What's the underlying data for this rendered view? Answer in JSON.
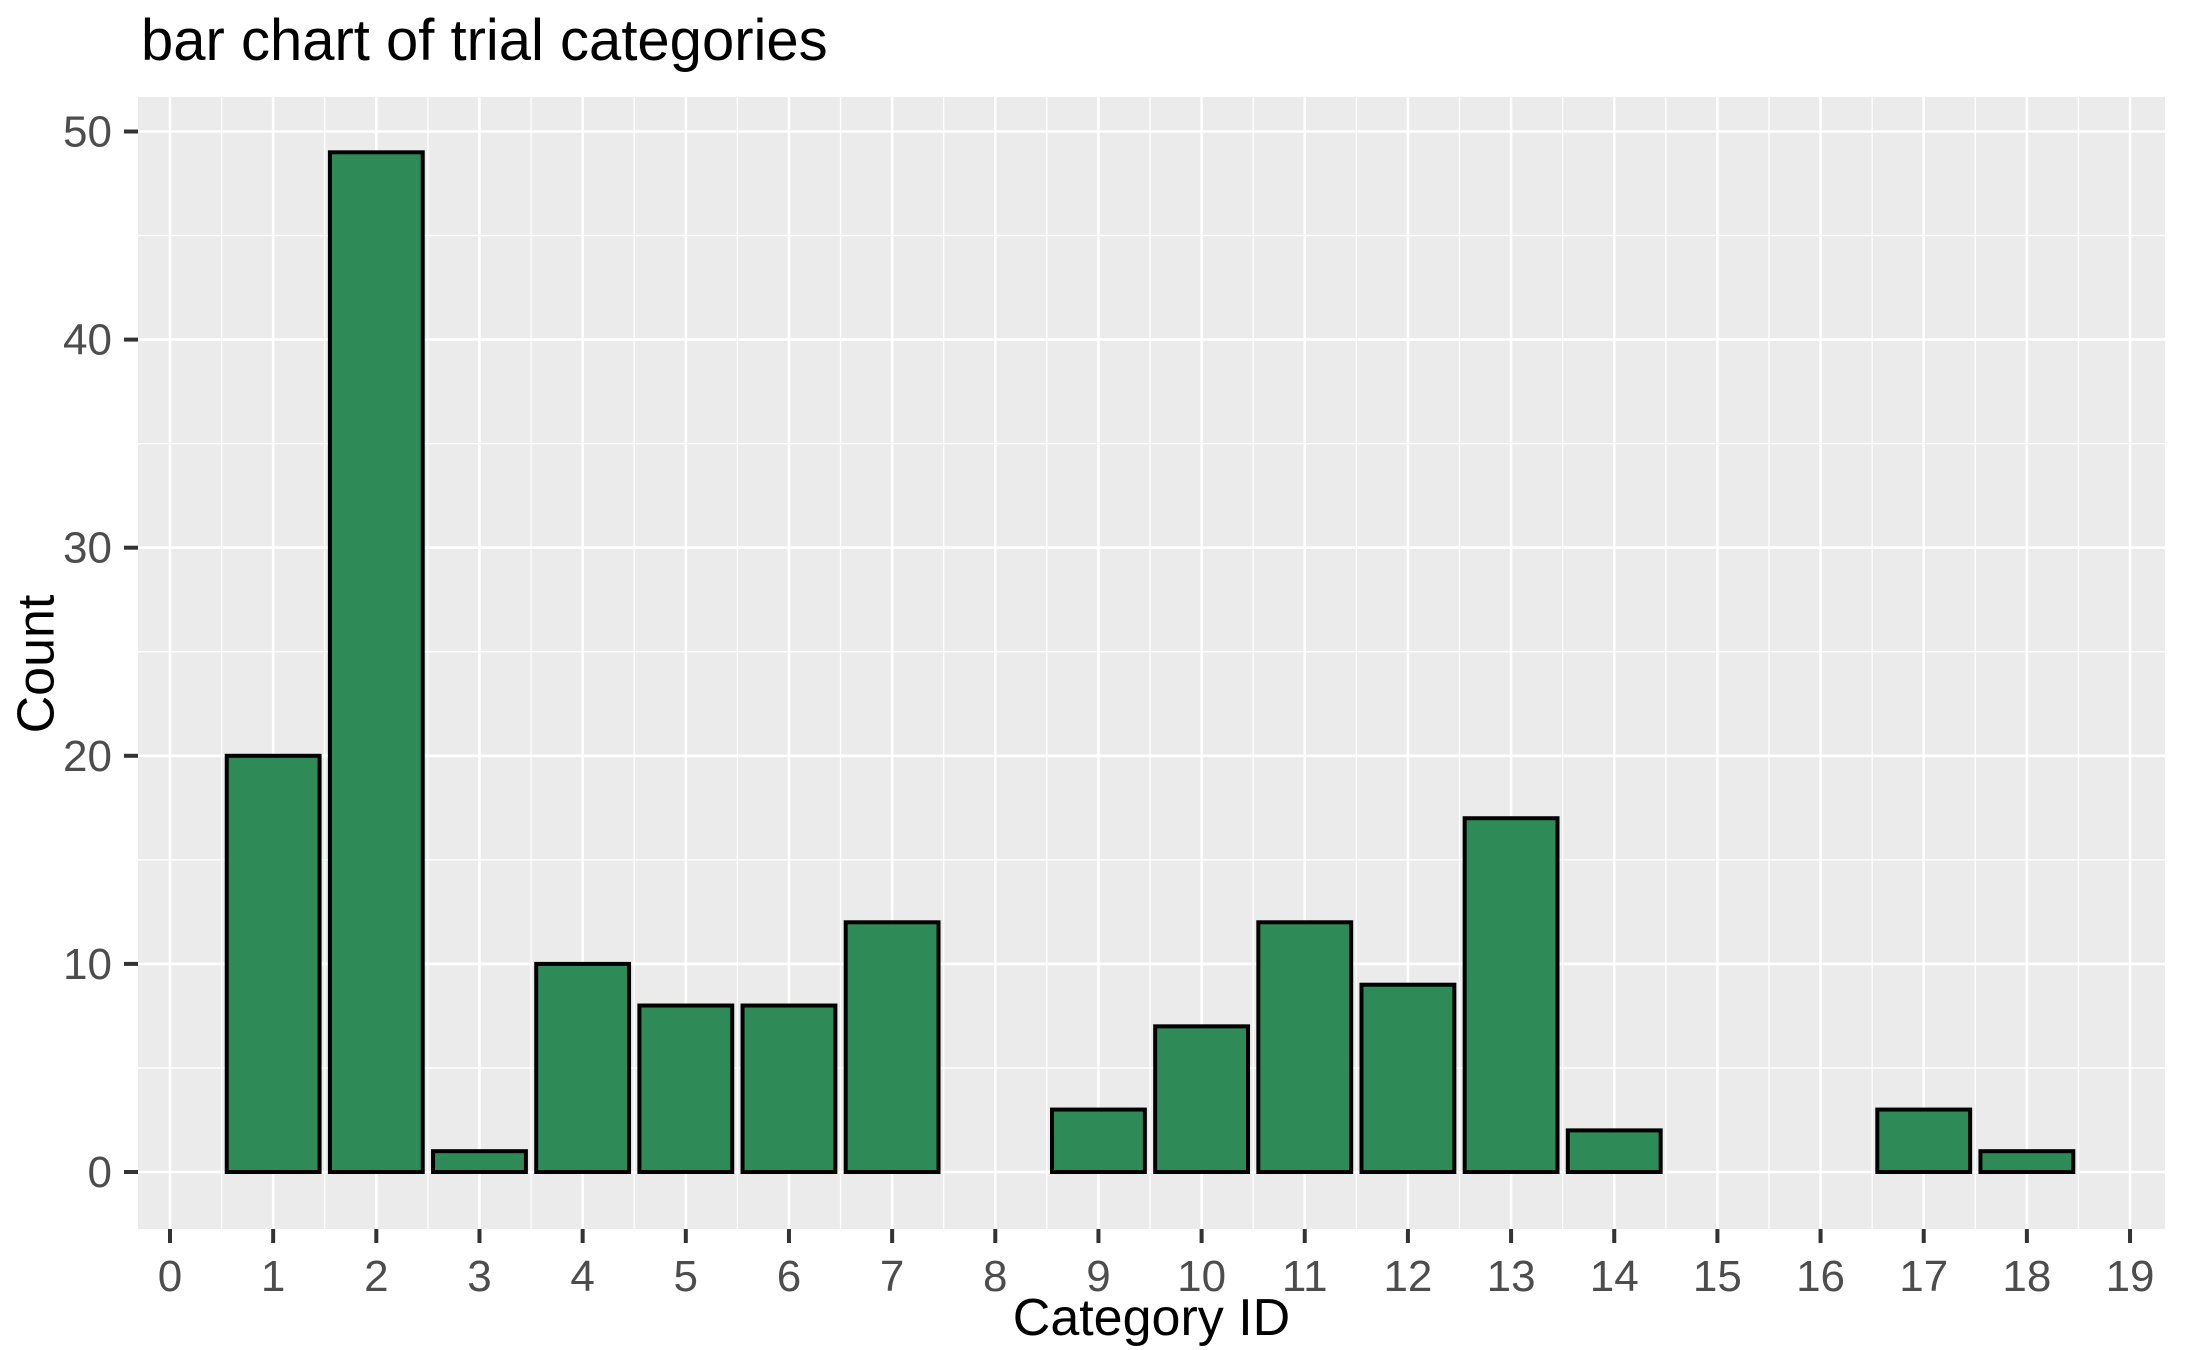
{
  "chart_data": {
    "type": "bar",
    "title": "bar chart of trial categories",
    "xlabel": "Category ID",
    "ylabel": "Count",
    "categories": [
      0,
      1,
      2,
      3,
      4,
      5,
      6,
      7,
      8,
      9,
      10,
      11,
      12,
      13,
      14,
      15,
      16,
      17,
      18,
      19
    ],
    "values": [
      0,
      20,
      49,
      1,
      10,
      8,
      8,
      12,
      0,
      3,
      7,
      12,
      9,
      17,
      2,
      0,
      0,
      3,
      1,
      0
    ],
    "x_ticks": [
      "0",
      "1",
      "2",
      "3",
      "4",
      "5",
      "6",
      "7",
      "8",
      "9",
      "10",
      "11",
      "12",
      "13",
      "14",
      "15",
      "16",
      "17",
      "18",
      "19"
    ],
    "y_ticks": [
      0,
      10,
      20,
      30,
      40,
      50
    ],
    "y_minor_ticks": [
      5,
      15,
      25,
      35,
      45
    ],
    "ylim": [
      0,
      50
    ],
    "grid": true,
    "legend_position": "none",
    "bar_width_fraction": 0.9,
    "style": {
      "bar_fill": "#2e8b57",
      "bar_stroke": "#000000",
      "panel_bg": "#ebebeb",
      "grid_color": "#ffffff",
      "axis_text_color": "#4d4d4d",
      "tick_mark_color": "#333333",
      "title_color": "#000000"
    }
  }
}
